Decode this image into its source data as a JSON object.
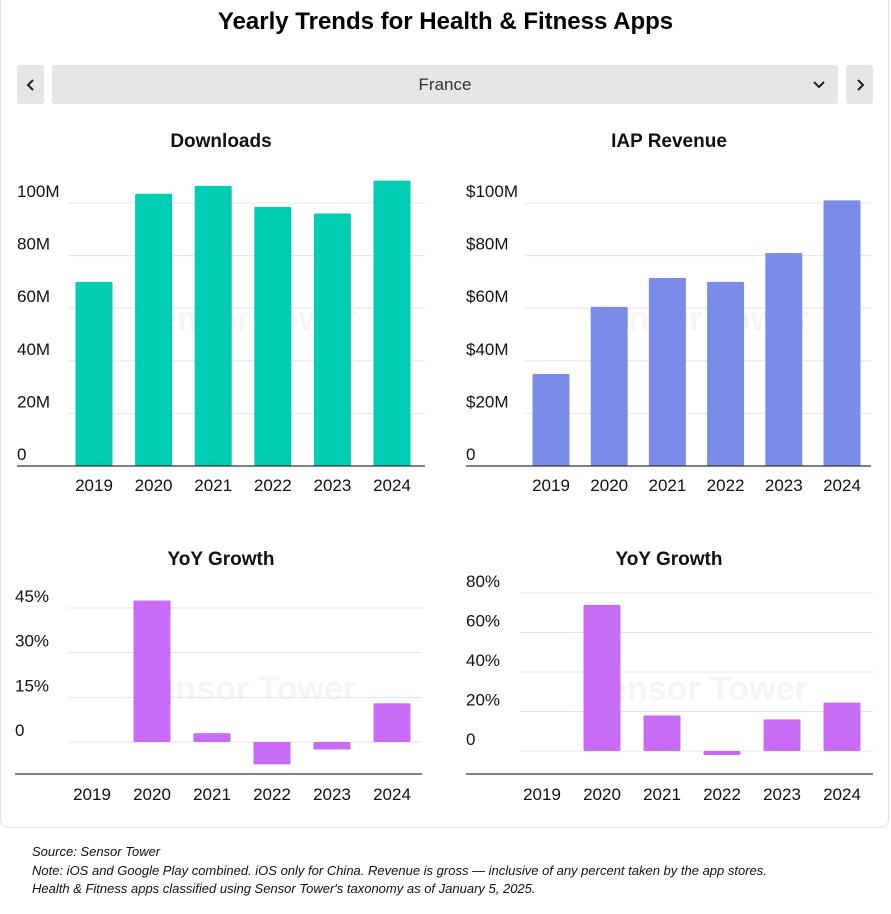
{
  "title": "Yearly Trends for Health & Fitness Apps",
  "selector": {
    "value": "France",
    "prev_icon": "chevron-left-icon",
    "next_icon": "chevron-right-icon",
    "dropdown_icon": "chevron-down-icon"
  },
  "watermark": "Sensor Tower",
  "colors": {
    "downloads": "#00cdb4",
    "revenue": "#7a8ce8",
    "growth": "#c86cf5",
    "nav_bg": "#e6e6e6"
  },
  "chart_data": [
    {
      "type": "bar",
      "title": "Downloads",
      "categories": [
        "2019",
        "2020",
        "2021",
        "2022",
        "2023",
        "2024"
      ],
      "values": [
        70,
        103.5,
        106.5,
        98.5,
        96,
        108.5
      ],
      "ylim": [
        0,
        100
      ],
      "yticks": [
        0,
        20,
        40,
        60,
        80,
        100
      ],
      "ytick_labels": [
        "0",
        "20M",
        "40M",
        "60M",
        "80M",
        "100M"
      ],
      "xlabel": "",
      "ylabel": "",
      "grid": true,
      "color": "#00cdb4"
    },
    {
      "type": "bar",
      "title": "IAP Revenue",
      "categories": [
        "2019",
        "2020",
        "2021",
        "2022",
        "2023",
        "2024"
      ],
      "values": [
        35,
        60.5,
        71.5,
        70,
        81,
        101
      ],
      "ylim": [
        0,
        100
      ],
      "yticks": [
        0,
        20,
        40,
        60,
        80,
        100
      ],
      "ytick_labels": [
        "0",
        "$20M",
        "$40M",
        "$60M",
        "$80M",
        "$100M"
      ],
      "xlabel": "",
      "ylabel": "",
      "grid": true,
      "color": "#7a8ce8"
    },
    {
      "type": "bar",
      "title": "YoY Growth",
      "categories": [
        "2019",
        "2020",
        "2021",
        "2022",
        "2023",
        "2024"
      ],
      "values": [
        null,
        47.5,
        3,
        -7.5,
        -2.5,
        13
      ],
      "ylim": [
        -12,
        45
      ],
      "yticks": [
        0,
        15,
        30,
        45
      ],
      "ytick_labels": [
        "0",
        "15%",
        "30%",
        "45%"
      ],
      "xlabel": "",
      "ylabel": "",
      "grid": true,
      "color": "#c86cf5"
    },
    {
      "type": "bar",
      "title": "YoY Growth",
      "categories": [
        "2019",
        "2020",
        "2021",
        "2022",
        "2023",
        "2024"
      ],
      "values": [
        null,
        74,
        18,
        -2,
        16,
        24.5
      ],
      "ylim": [
        -12,
        80
      ],
      "yticks": [
        0,
        20,
        40,
        60,
        80
      ],
      "ytick_labels": [
        "0",
        "20%",
        "40%",
        "60%",
        "80%"
      ],
      "xlabel": "",
      "ylabel": "",
      "grid": true,
      "color": "#c86cf5"
    }
  ],
  "footer": {
    "source": "Source: Sensor Tower",
    "note": "Note: iOS and Google Play combined. iOS only for China. Revenue is gross — inclusive of any percent taken by the app stores.",
    "taxonomy": "Health & Fitness apps classified using Sensor Tower's taxonomy as of January 5, 2025."
  }
}
